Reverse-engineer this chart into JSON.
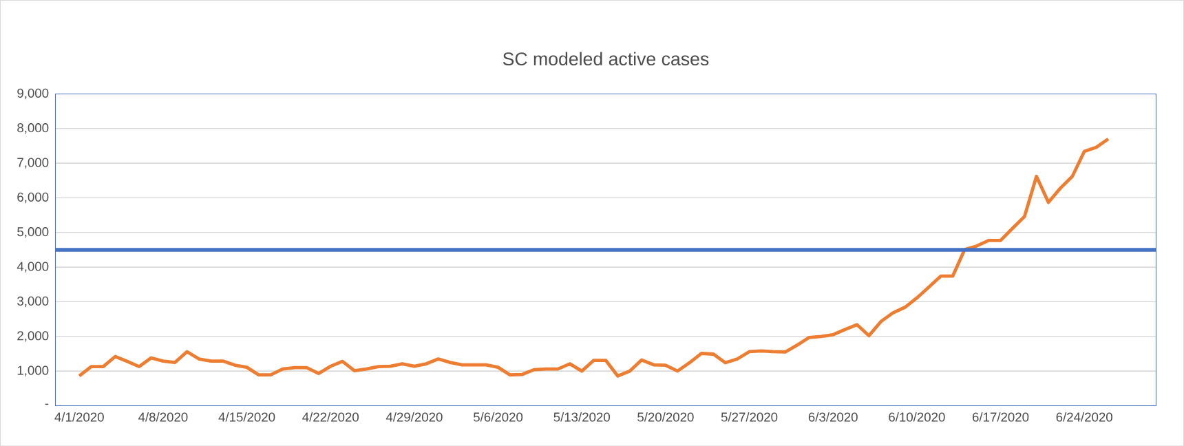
{
  "chart_data": {
    "type": "line",
    "title": "SC modeled active cases",
    "categories": [
      "4/1/2020",
      null,
      null,
      null,
      null,
      null,
      null,
      "4/8/2020",
      null,
      null,
      null,
      null,
      null,
      null,
      "4/15/2020",
      null,
      null,
      null,
      null,
      null,
      null,
      "4/22/2020",
      null,
      null,
      null,
      null,
      null,
      null,
      "4/29/2020",
      null,
      null,
      null,
      null,
      null,
      null,
      "5/6/2020",
      null,
      null,
      null,
      null,
      null,
      null,
      "5/13/2020",
      null,
      null,
      null,
      null,
      null,
      null,
      "5/20/2020",
      null,
      null,
      null,
      null,
      null,
      null,
      "5/27/2020",
      null,
      null,
      null,
      null,
      null,
      null,
      "6/3/2020",
      null,
      null,
      null,
      null,
      null,
      null,
      "6/10/2020",
      null,
      null,
      null,
      null,
      null,
      null,
      "6/17/2020",
      null,
      null,
      null,
      null,
      null,
      null,
      "6/24/2020",
      null,
      null
    ],
    "series": [
      {
        "color": "#ed7d31",
        "values": [
          860,
          1130,
          1130,
          1420,
          1280,
          1130,
          1380,
          1290,
          1250,
          1560,
          1350,
          1290,
          1290,
          1170,
          1110,
          890,
          890,
          1060,
          1100,
          1100,
          930,
          1140,
          1280,
          1010,
          1060,
          1130,
          1140,
          1210,
          1140,
          1210,
          1350,
          1250,
          1180,
          1180,
          1180,
          1110,
          890,
          900,
          1040,
          1060,
          1060,
          1210,
          1000,
          1310,
          1310,
          860,
          1000,
          1320,
          1180,
          1170,
          1000,
          1240,
          1510,
          1490,
          1240,
          1350,
          1560,
          1580,
          1560,
          1550,
          1750,
          1970,
          2000,
          2050,
          2200,
          2340,
          2020,
          2430,
          2680,
          2840,
          3110,
          3420,
          3740,
          3740,
          4510,
          4610,
          4770,
          4770,
          5120,
          5460,
          6620,
          5870,
          6280,
          6620,
          7340,
          7460,
          7700
        ]
      }
    ],
    "ylim": [
      0,
      9000
    ],
    "yticks": [
      {
        "value": 0,
        "label": "-"
      },
      {
        "value": 1000,
        "label": "1,000"
      },
      {
        "value": 2000,
        "label": "2,000"
      },
      {
        "value": 3000,
        "label": "3,000"
      },
      {
        "value": 4000,
        "label": "4,000"
      },
      {
        "value": 5000,
        "label": "5,000"
      },
      {
        "value": 6000,
        "label": "6,000"
      },
      {
        "value": 7000,
        "label": "7,000"
      },
      {
        "value": 8000,
        "label": "8,000"
      },
      {
        "value": 9000,
        "label": "9,000"
      }
    ],
    "ref_lines": [
      {
        "axis": "y",
        "value": 4500,
        "color": "#4472c4"
      }
    ],
    "grid": "y",
    "marker": "none",
    "line_style": "solid"
  }
}
